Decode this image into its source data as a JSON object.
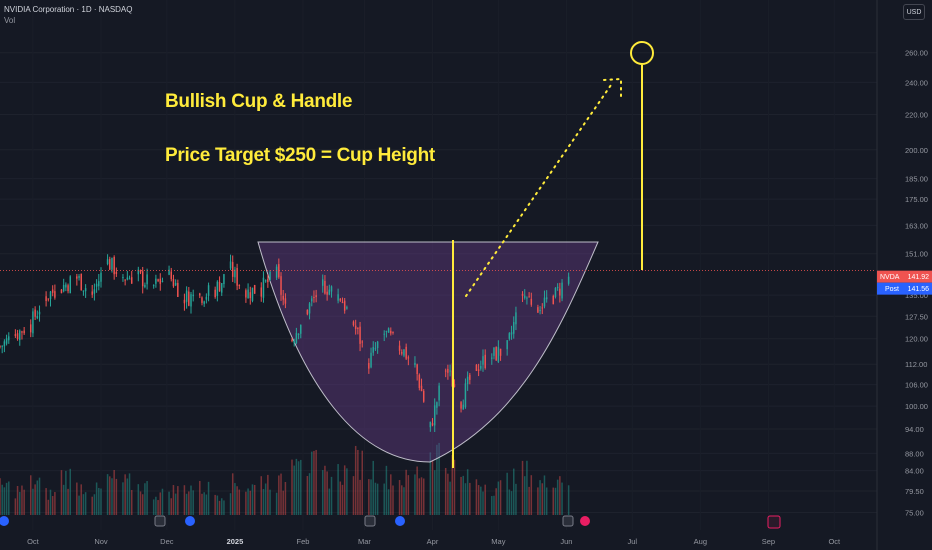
{
  "header": {
    "title": "NVIDIA Corporation · 1D · NASDAQ",
    "vol_label": "Vol",
    "currency_button": "USD"
  },
  "annotations": {
    "line1": "Bullish Cup & Handle",
    "line2": "Price Target $250 = Cup Height"
  },
  "colors": {
    "background": "#151924",
    "up": "#26a69a",
    "down": "#ef5350",
    "cup_fill": "#6a3f8a",
    "annotation": "#ffeb3b",
    "target_circle": "#ffeb3b",
    "price_line": "#ef5350",
    "post_tag": "#2962ff"
  },
  "chart_data": {
    "type": "candlestick",
    "symbol": "NVDA",
    "timeframe": "1D",
    "exchange": "NASDAQ",
    "y_scale": "log",
    "ylim": [
      73.5,
      275
    ],
    "y_ticks": [
      "260.00",
      "240.00",
      "220.00",
      "200.00",
      "185.00",
      "175.00",
      "163.00",
      "151.00",
      "135.00",
      "127.50",
      "120.00",
      "112.00",
      "106.00",
      "100.00",
      "94.00",
      "88.00",
      "84.00",
      "79.50",
      "75.00"
    ],
    "x_ticks": [
      {
        "label": "Oct",
        "date": "2024-10-01"
      },
      {
        "label": "Nov",
        "date": "2024-11-01"
      },
      {
        "label": "Dec",
        "date": "2024-12-01"
      },
      {
        "label": "2025",
        "date": "2025-01-01",
        "bold": true
      },
      {
        "label": "Feb",
        "date": "2025-02-01"
      },
      {
        "label": "Mar",
        "date": "2025-03-01"
      },
      {
        "label": "Apr",
        "date": "2025-04-01"
      },
      {
        "label": "May",
        "date": "2025-05-01"
      },
      {
        "label": "Jun",
        "date": "2025-06-01"
      },
      {
        "label": "Jul",
        "date": "2025-07-01"
      },
      {
        "label": "Aug",
        "date": "2025-08-01"
      },
      {
        "label": "Sep",
        "date": "2025-09-01"
      },
      {
        "label": "Oct",
        "date": "2025-10-01"
      }
    ],
    "last_price": {
      "label": "NVDA",
      "value": "141.92"
    },
    "post_price": {
      "label": "Post",
      "value": "141.56"
    },
    "close_path": [
      {
        "date": "2024-09-16",
        "close": 117.5
      },
      {
        "date": "2024-09-23",
        "close": 121.4
      },
      {
        "date": "2024-09-30",
        "close": 124.9
      },
      {
        "date": "2024-10-07",
        "close": 134.8
      },
      {
        "date": "2024-10-14",
        "close": 138.0
      },
      {
        "date": "2024-10-21",
        "close": 141.5
      },
      {
        "date": "2024-10-28",
        "close": 135.4
      },
      {
        "date": "2024-11-04",
        "close": 147.6
      },
      {
        "date": "2024-11-11",
        "close": 141.9
      },
      {
        "date": "2024-11-18",
        "close": 141.9
      },
      {
        "date": "2024-11-25",
        "close": 138.3
      },
      {
        "date": "2024-12-02",
        "close": 142.4
      },
      {
        "date": "2024-12-09",
        "close": 134.3
      },
      {
        "date": "2024-12-16",
        "close": 134.7
      },
      {
        "date": "2024-12-23",
        "close": 137.0
      },
      {
        "date": "2024-12-30",
        "close": 144.5
      },
      {
        "date": "2025-01-06",
        "close": 135.9
      },
      {
        "date": "2025-01-13",
        "close": 137.7
      },
      {
        "date": "2025-01-20",
        "close": 142.6
      },
      {
        "date": "2025-01-27",
        "close": 120.1
      },
      {
        "date": "2025-02-03",
        "close": 129.8
      },
      {
        "date": "2025-02-10",
        "close": 138.9
      },
      {
        "date": "2025-02-18",
        "close": 134.4
      },
      {
        "date": "2025-02-24",
        "close": 124.9
      },
      {
        "date": "2025-03-03",
        "close": 112.7
      },
      {
        "date": "2025-03-10",
        "close": 121.7
      },
      {
        "date": "2025-03-17",
        "close": 117.7
      },
      {
        "date": "2025-03-24",
        "close": 111.4
      },
      {
        "date": "2025-03-31",
        "close": 94.3
      },
      {
        "date": "2025-04-07",
        "close": 110.9
      },
      {
        "date": "2025-04-14",
        "close": 101.5
      },
      {
        "date": "2025-04-21",
        "close": 111.4
      },
      {
        "date": "2025-04-28",
        "close": 114.5
      },
      {
        "date": "2025-05-05",
        "close": 116.7
      },
      {
        "date": "2025-05-12",
        "close": 135.4
      },
      {
        "date": "2025-05-19",
        "close": 131.3
      },
      {
        "date": "2025-05-27",
        "close": 135.1
      },
      {
        "date": "2025-06-02",
        "close": 141.9
      }
    ],
    "volume_relative": [
      0.4,
      0.35,
      0.45,
      0.3,
      0.55,
      0.4,
      0.35,
      0.5,
      0.45,
      0.4,
      0.3,
      0.35,
      0.4,
      0.38,
      0.3,
      0.45,
      0.4,
      0.5,
      0.45,
      1.0,
      0.7,
      0.55,
      0.6,
      0.75,
      0.65,
      0.55,
      0.5,
      0.6,
      0.9,
      0.7,
      0.5,
      0.45,
      0.4,
      0.5,
      0.6,
      0.45,
      0.55,
      0.5
    ]
  }
}
